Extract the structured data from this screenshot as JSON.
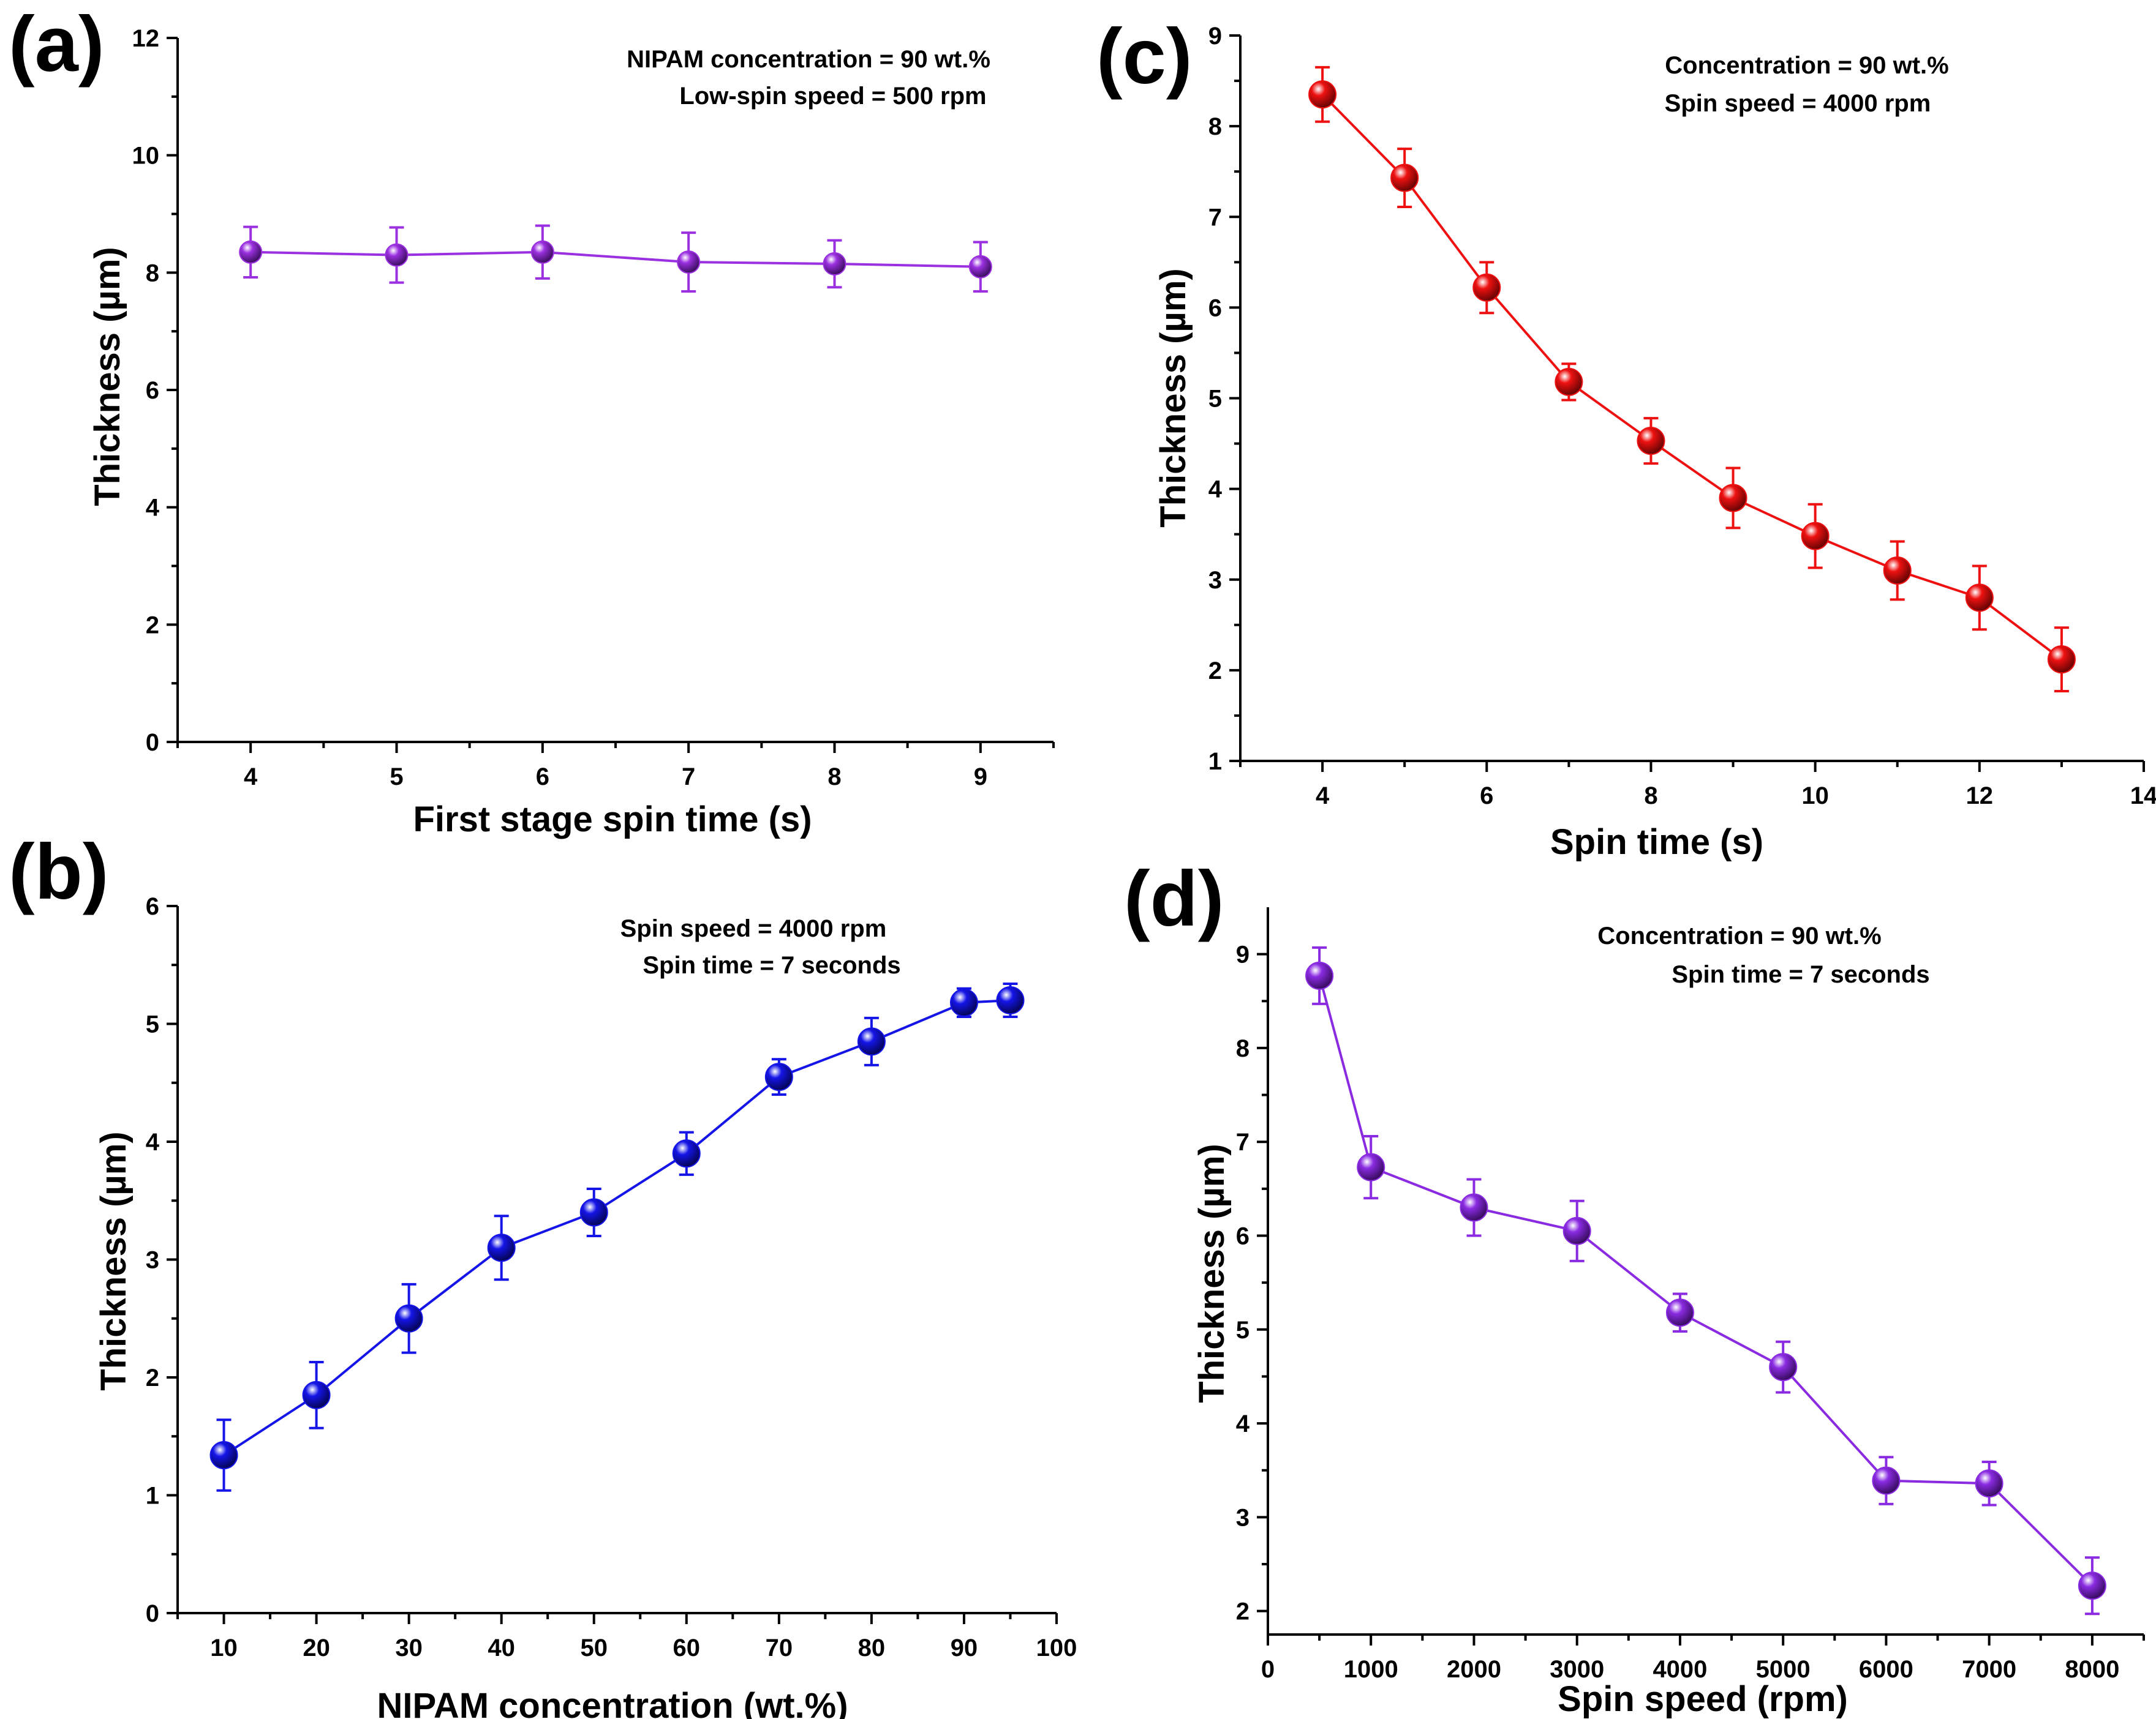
{
  "chart_data": [
    {
      "panel": "(a)",
      "type": "line",
      "title": "",
      "xlabel": "First stage spin time (s)",
      "ylabel": "Thickness (µm)",
      "xlim": [
        3.5,
        9.5
      ],
      "ylim": [
        0,
        12
      ],
      "xticks": [
        4,
        5,
        6,
        7,
        8,
        9
      ],
      "xminor": [
        3.5,
        4.5,
        5.5,
        6.5,
        7.5,
        8.5,
        9.5
      ],
      "yticks": [
        0,
        2,
        4,
        6,
        8,
        10,
        12
      ],
      "yminor": [
        1,
        3,
        5,
        7,
        9,
        11
      ],
      "annotations": [
        "NIPAM concentration = 90 wt.%",
        "Low-spin speed = 500 rpm"
      ],
      "color": "#9b30e0",
      "grid": false,
      "legend": "none",
      "series": [
        {
          "name": "Thickness",
          "x": [
            4,
            5,
            6,
            7,
            8,
            9
          ],
          "y": [
            8.35,
            8.3,
            8.35,
            8.18,
            8.15,
            8.1
          ],
          "err": [
            0.43,
            0.47,
            0.45,
            0.5,
            0.4,
            0.42
          ]
        }
      ]
    },
    {
      "panel": "(b)",
      "type": "line",
      "title": "",
      "xlabel": "NIPAM concentration (wt.%)",
      "ylabel": "Thickness (µm)",
      "xlim": [
        5,
        100
      ],
      "ylim": [
        0,
        6
      ],
      "xticks": [
        10,
        20,
        30,
        40,
        50,
        60,
        70,
        80,
        90,
        100
      ],
      "xminor": [
        5,
        15,
        25,
        35,
        45,
        55,
        65,
        75,
        85,
        95
      ],
      "yticks": [
        0,
        1,
        2,
        3,
        4,
        5,
        6
      ],
      "yminor": [
        0.5,
        1.5,
        2.5,
        3.5,
        4.5,
        5.5
      ],
      "annotations": [
        "Spin speed = 4000 rpm",
        "Spin time = 7 seconds"
      ],
      "color": "#1515e8",
      "grid": false,
      "legend": "none",
      "series": [
        {
          "name": "Thickness",
          "x": [
            10,
            20,
            30,
            40,
            50,
            60,
            70,
            80,
            90,
            95
          ],
          "y": [
            1.34,
            1.85,
            2.5,
            3.1,
            3.4,
            3.9,
            4.55,
            4.85,
            5.18,
            5.2
          ],
          "err": [
            0.3,
            0.28,
            0.29,
            0.27,
            0.2,
            0.18,
            0.15,
            0.2,
            0.12,
            0.14
          ]
        }
      ]
    },
    {
      "panel": "(c)",
      "type": "line",
      "title": "",
      "xlabel": "Spin time (s)",
      "ylabel": "Thickness (µm)",
      "xlim": [
        3,
        14
      ],
      "ylim": [
        1,
        9
      ],
      "xticks": [
        4,
        6,
        8,
        10,
        12,
        14
      ],
      "xminor": [
        3,
        5,
        7,
        9,
        11,
        13
      ],
      "yticks": [
        1,
        2,
        3,
        4,
        5,
        6,
        7,
        8,
        9
      ],
      "yminor": [
        1.5,
        2.5,
        3.5,
        4.5,
        5.5,
        6.5,
        7.5,
        8.5
      ],
      "annotations": [
        "Concentration = 90 wt.%",
        "Spin speed = 4000 rpm"
      ],
      "color": "#ee1111",
      "grid": false,
      "legend": "none",
      "series": [
        {
          "name": "Thickness",
          "x": [
            4,
            5,
            6,
            7,
            8,
            9,
            10,
            11,
            12,
            13
          ],
          "y": [
            8.35,
            7.43,
            6.22,
            5.18,
            4.53,
            3.9,
            3.48,
            3.1,
            2.8,
            2.12
          ],
          "err": [
            0.3,
            0.32,
            0.28,
            0.2,
            0.25,
            0.33,
            0.35,
            0.32,
            0.35,
            0.35
          ]
        }
      ]
    },
    {
      "panel": "(d)",
      "type": "line",
      "title": "",
      "xlabel": "Spin speed (rpm)",
      "ylabel": "Thickness (µm)",
      "xlim": [
        0,
        8500
      ],
      "ylim": [
        1.75,
        9.5
      ],
      "xticks": [
        0,
        1000,
        2000,
        3000,
        4000,
        5000,
        6000,
        7000,
        8000
      ],
      "xminor": [
        500,
        1500,
        2500,
        3500,
        4500,
        5500,
        6500,
        7500,
        8500
      ],
      "yticks": [
        2,
        3,
        4,
        5,
        6,
        7,
        8,
        9
      ],
      "yminor": [
        2.5,
        3.5,
        4.5,
        5.5,
        6.5,
        7.5,
        8.5
      ],
      "annotations": [
        "Concentration = 90 wt.%",
        "Spin time = 7 seconds"
      ],
      "color": "#8a2be2",
      "grid": false,
      "legend": "none",
      "series": [
        {
          "name": "Thickness",
          "x": [
            500,
            1000,
            2000,
            3000,
            4000,
            5000,
            6000,
            7000,
            8000
          ],
          "y": [
            8.77,
            6.73,
            6.3,
            6.05,
            5.18,
            4.6,
            3.39,
            3.36,
            2.27
          ],
          "err": [
            0.3,
            0.33,
            0.3,
            0.32,
            0.2,
            0.27,
            0.25,
            0.23,
            0.3
          ]
        }
      ]
    }
  ]
}
